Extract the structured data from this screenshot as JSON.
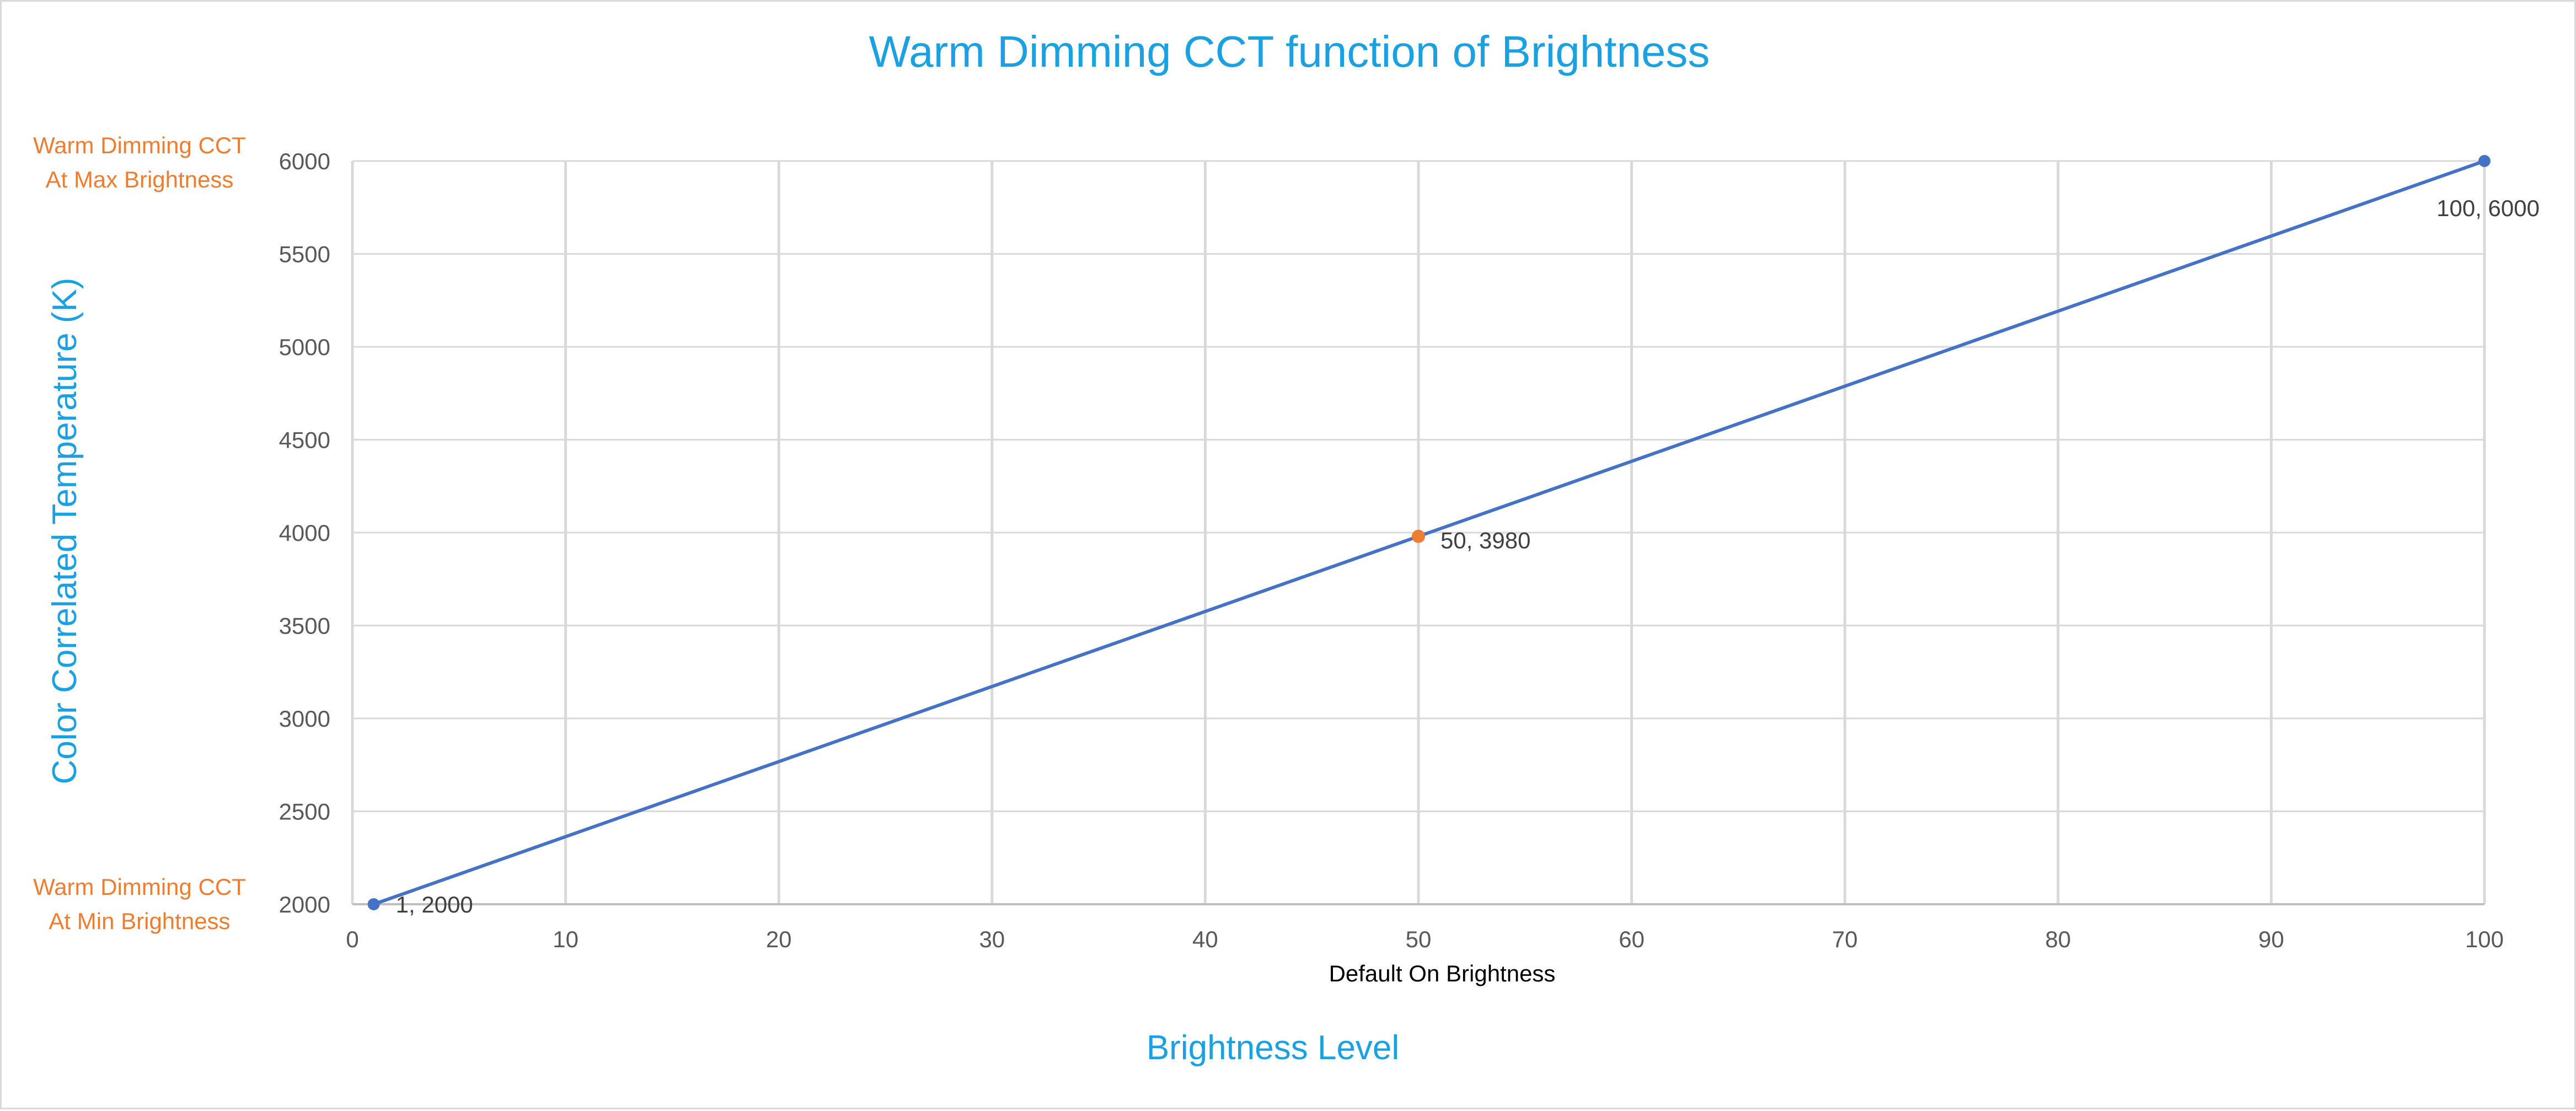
{
  "colors": {
    "accent": "#1ba1e2",
    "annotation": "#ed7d31",
    "series": "#4472c4",
    "highlight": "#ed7d31",
    "grid": "#d9d9d9",
    "tick": "#595959"
  },
  "chart_data": {
    "type": "line",
    "title": "Warm Dimming CCT function of Brightness",
    "xlabel": "Brightness Level",
    "ylabel": "Color Correlated Temperature (K)",
    "x_sublabel": "Default On Brightness",
    "xlim": [
      0,
      100
    ],
    "ylim": [
      2000,
      6000
    ],
    "xticks": [
      0,
      10,
      20,
      30,
      40,
      50,
      60,
      70,
      80,
      90,
      100
    ],
    "yticks": [
      2000,
      2500,
      3000,
      3500,
      4000,
      4500,
      5000,
      5500,
      6000
    ],
    "grid": true,
    "legend": "none",
    "series": [
      {
        "points": [
          {
            "x": 1,
            "y": 2000,
            "label": "1, 2000"
          },
          {
            "x": 100,
            "y": 6000,
            "label": "100, 6000"
          }
        ]
      }
    ],
    "highlight_point": {
      "x": 50,
      "y": 3980,
      "label": "50, 3980"
    },
    "annotations": {
      "max": [
        "Warm Dimming CCT",
        "At Max Brightness"
      ],
      "min": [
        "Warm Dimming CCT",
        "At Min Brightness"
      ]
    }
  }
}
